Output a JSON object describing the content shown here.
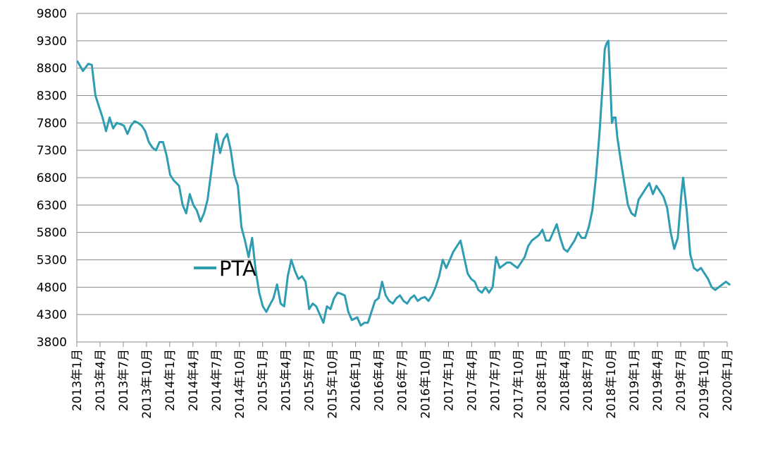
{
  "colors": {
    "series": "#2E9DB2",
    "grid": "#8C8C8C",
    "axis": "#8C8C8C"
  },
  "chart_data": {
    "type": "line",
    "title": "",
    "xlabel": "",
    "ylabel": "",
    "ylim": [
      3800,
      9800
    ],
    "yticks": [
      3800,
      4300,
      4800,
      5300,
      5800,
      6300,
      6800,
      7300,
      7800,
      8300,
      8800,
      9300,
      9800
    ],
    "grid": "horizontal",
    "legend_position": "center-left",
    "x_tick_labels": [
      "2013年1月",
      "2013年4月",
      "2013年7月",
      "2013年10月",
      "2014年1月",
      "2014年4月",
      "2014年7月",
      "2014年10月",
      "2015年1月",
      "2015年4月",
      "2015年7月",
      "2015年10月",
      "2016年1月",
      "2016年4月",
      "2016年7月",
      "2016年10月",
      "2017年1月",
      "2017年4月",
      "2017年7月",
      "2017年10月",
      "2018年1月",
      "2018年4月",
      "2018年7月",
      "2018年10月",
      "2019年1月",
      "2019年4月",
      "2019年7月",
      "2019年10月",
      "2020年1月"
    ],
    "series": [
      {
        "name": "PTA",
        "points": [
          [
            "2013-01-04",
            8920
          ],
          [
            "2013-01-25",
            8750
          ],
          [
            "2013-02-15",
            8880
          ],
          [
            "2013-03-01",
            8860
          ],
          [
            "2013-03-15",
            8300
          ],
          [
            "2013-03-29",
            8100
          ],
          [
            "2013-04-12",
            7900
          ],
          [
            "2013-04-26",
            7650
          ],
          [
            "2013-05-10",
            7900
          ],
          [
            "2013-05-24",
            7700
          ],
          [
            "2013-06-07",
            7800
          ],
          [
            "2013-06-21",
            7780
          ],
          [
            "2013-07-05",
            7750
          ],
          [
            "2013-07-19",
            7600
          ],
          [
            "2013-08-02",
            7750
          ],
          [
            "2013-08-16",
            7830
          ],
          [
            "2013-08-30",
            7800
          ],
          [
            "2013-09-13",
            7750
          ],
          [
            "2013-09-27",
            7650
          ],
          [
            "2013-10-11",
            7450
          ],
          [
            "2013-10-25",
            7350
          ],
          [
            "2013-11-08",
            7300
          ],
          [
            "2013-11-22",
            7450
          ],
          [
            "2013-12-06",
            7450
          ],
          [
            "2013-12-20",
            7200
          ],
          [
            "2014-01-03",
            6850
          ],
          [
            "2014-01-17",
            6750
          ],
          [
            "2014-02-07",
            6650
          ],
          [
            "2014-02-21",
            6300
          ],
          [
            "2014-03-07",
            6150
          ],
          [
            "2014-03-21",
            6500
          ],
          [
            "2014-04-04",
            6300
          ],
          [
            "2014-04-18",
            6200
          ],
          [
            "2014-05-02",
            6000
          ],
          [
            "2014-05-16",
            6150
          ],
          [
            "2014-05-30",
            6400
          ],
          [
            "2014-06-13",
            6900
          ],
          [
            "2014-06-27",
            7400
          ],
          [
            "2014-07-04",
            7600
          ],
          [
            "2014-07-18",
            7250
          ],
          [
            "2014-08-01",
            7500
          ],
          [
            "2014-08-15",
            7600
          ],
          [
            "2014-08-29",
            7300
          ],
          [
            "2014-09-12",
            6850
          ],
          [
            "2014-09-26",
            6650
          ],
          [
            "2014-10-10",
            5900
          ],
          [
            "2014-10-24",
            5650
          ],
          [
            "2014-11-07",
            5350
          ],
          [
            "2014-11-21",
            5700
          ],
          [
            "2014-12-05",
            5100
          ],
          [
            "2014-12-19",
            4700
          ],
          [
            "2015-01-02",
            4450
          ],
          [
            "2015-01-16",
            4350
          ],
          [
            "2015-01-30",
            4480
          ],
          [
            "2015-02-13",
            4600
          ],
          [
            "2015-02-27",
            4850
          ],
          [
            "2015-03-13",
            4500
          ],
          [
            "2015-03-27",
            4450
          ],
          [
            "2015-04-10",
            5000
          ],
          [
            "2015-04-24",
            5300
          ],
          [
            "2015-05-08",
            5100
          ],
          [
            "2015-05-22",
            4950
          ],
          [
            "2015-06-05",
            5000
          ],
          [
            "2015-06-19",
            4900
          ],
          [
            "2015-07-03",
            4400
          ],
          [
            "2015-07-17",
            4500
          ],
          [
            "2015-07-31",
            4450
          ],
          [
            "2015-08-14",
            4300
          ],
          [
            "2015-08-28",
            4150
          ],
          [
            "2015-09-11",
            4450
          ],
          [
            "2015-09-25",
            4400
          ],
          [
            "2015-10-09",
            4600
          ],
          [
            "2015-10-23",
            4700
          ],
          [
            "2015-11-06",
            4680
          ],
          [
            "2015-11-20",
            4650
          ],
          [
            "2015-12-04",
            4350
          ],
          [
            "2015-12-18",
            4200
          ],
          [
            "2016-01-08",
            4250
          ],
          [
            "2016-01-22",
            4100
          ],
          [
            "2016-02-05",
            4150
          ],
          [
            "2016-02-19",
            4150
          ],
          [
            "2016-03-04",
            4350
          ],
          [
            "2016-03-18",
            4550
          ],
          [
            "2016-04-01",
            4600
          ],
          [
            "2016-04-15",
            4900
          ],
          [
            "2016-04-29",
            4650
          ],
          [
            "2016-05-13",
            4550
          ],
          [
            "2016-05-27",
            4500
          ],
          [
            "2016-06-10",
            4600
          ],
          [
            "2016-06-24",
            4650
          ],
          [
            "2016-07-08",
            4550
          ],
          [
            "2016-07-22",
            4500
          ],
          [
            "2016-08-05",
            4600
          ],
          [
            "2016-08-19",
            4650
          ],
          [
            "2016-09-02",
            4550
          ],
          [
            "2016-09-16",
            4600
          ],
          [
            "2016-09-30",
            4620
          ],
          [
            "2016-10-14",
            4550
          ],
          [
            "2016-10-28",
            4650
          ],
          [
            "2016-11-11",
            4800
          ],
          [
            "2016-11-25",
            5000
          ],
          [
            "2016-12-09",
            5300
          ],
          [
            "2016-12-23",
            5150
          ],
          [
            "2017-01-06",
            5300
          ],
          [
            "2017-01-20",
            5450
          ],
          [
            "2017-02-03",
            5550
          ],
          [
            "2017-02-17",
            5650
          ],
          [
            "2017-03-03",
            5350
          ],
          [
            "2017-03-17",
            5050
          ],
          [
            "2017-03-31",
            4950
          ],
          [
            "2017-04-14",
            4900
          ],
          [
            "2017-04-28",
            4750
          ],
          [
            "2017-05-12",
            4700
          ],
          [
            "2017-05-26",
            4800
          ],
          [
            "2017-06-09",
            4700
          ],
          [
            "2017-06-23",
            4800
          ],
          [
            "2017-07-07",
            5350
          ],
          [
            "2017-07-21",
            5150
          ],
          [
            "2017-08-04",
            5200
          ],
          [
            "2017-08-18",
            5250
          ],
          [
            "2017-09-01",
            5250
          ],
          [
            "2017-09-15",
            5200
          ],
          [
            "2017-09-29",
            5150
          ],
          [
            "2017-10-13",
            5250
          ],
          [
            "2017-10-27",
            5350
          ],
          [
            "2017-11-10",
            5550
          ],
          [
            "2017-11-24",
            5650
          ],
          [
            "2017-12-08",
            5700
          ],
          [
            "2017-12-22",
            5750
          ],
          [
            "2018-01-05",
            5850
          ],
          [
            "2018-01-19",
            5650
          ],
          [
            "2018-02-02",
            5650
          ],
          [
            "2018-02-16",
            5800
          ],
          [
            "2018-03-02",
            5950
          ],
          [
            "2018-03-16",
            5700
          ],
          [
            "2018-03-30",
            5500
          ],
          [
            "2018-04-13",
            5450
          ],
          [
            "2018-04-27",
            5550
          ],
          [
            "2018-05-11",
            5650
          ],
          [
            "2018-05-25",
            5800
          ],
          [
            "2018-06-08",
            5700
          ],
          [
            "2018-06-22",
            5700
          ],
          [
            "2018-07-06",
            5900
          ],
          [
            "2018-07-20",
            6200
          ],
          [
            "2018-08-03",
            6800
          ],
          [
            "2018-08-17",
            7600
          ],
          [
            "2018-08-31",
            8600
          ],
          [
            "2018-09-07",
            9150
          ],
          [
            "2018-09-14",
            9250
          ],
          [
            "2018-09-21",
            9300
          ],
          [
            "2018-09-28",
            8600
          ],
          [
            "2018-10-05",
            7800
          ],
          [
            "2018-10-12",
            7900
          ],
          [
            "2018-10-19",
            7900
          ],
          [
            "2018-10-26",
            7550
          ],
          [
            "2018-11-09",
            7100
          ],
          [
            "2018-11-23",
            6700
          ],
          [
            "2018-12-07",
            6300
          ],
          [
            "2018-12-21",
            6150
          ],
          [
            "2019-01-04",
            6100
          ],
          [
            "2019-01-18",
            6400
          ],
          [
            "2019-02-01",
            6500
          ],
          [
            "2019-02-15",
            6600
          ],
          [
            "2019-03-01",
            6700
          ],
          [
            "2019-03-15",
            6500
          ],
          [
            "2019-03-29",
            6650
          ],
          [
            "2019-04-12",
            6550
          ],
          [
            "2019-04-26",
            6450
          ],
          [
            "2019-05-10",
            6250
          ],
          [
            "2019-05-24",
            5800
          ],
          [
            "2019-06-07",
            5500
          ],
          [
            "2019-06-21",
            5700
          ],
          [
            "2019-07-05",
            6500
          ],
          [
            "2019-07-12",
            6800
          ],
          [
            "2019-07-26",
            6200
          ],
          [
            "2019-08-09",
            5400
          ],
          [
            "2019-08-23",
            5150
          ],
          [
            "2019-09-06",
            5100
          ],
          [
            "2019-09-20",
            5150
          ],
          [
            "2019-10-04",
            5050
          ],
          [
            "2019-10-18",
            4950
          ],
          [
            "2019-11-01",
            4800
          ],
          [
            "2019-11-15",
            4750
          ],
          [
            "2019-11-29",
            4800
          ],
          [
            "2019-12-13",
            4850
          ],
          [
            "2019-12-27",
            4900
          ],
          [
            "2020-01-10",
            4850
          ]
        ]
      }
    ]
  }
}
